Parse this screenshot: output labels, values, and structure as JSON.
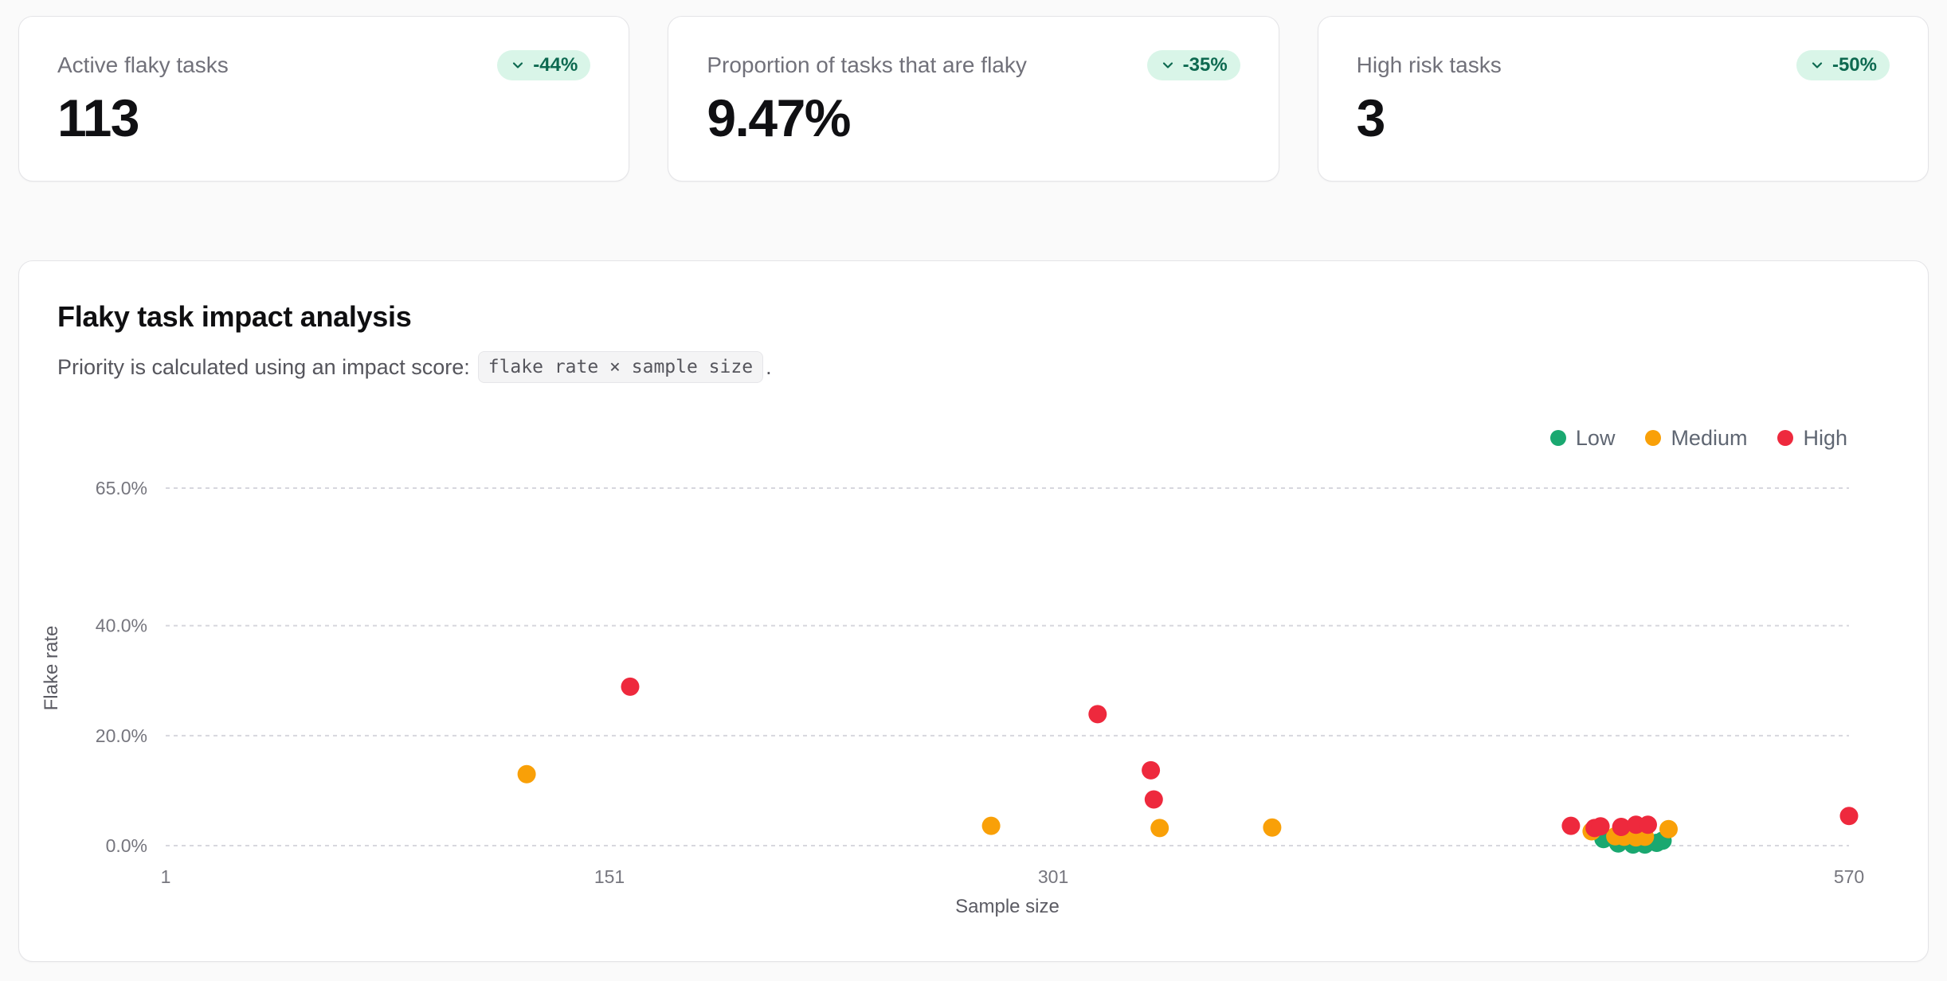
{
  "stats": [
    {
      "label": "Active flaky tasks",
      "value": "113",
      "delta": "-44%"
    },
    {
      "label": "Proportion of tasks that are flaky",
      "value": "9.47%",
      "delta": "-35%"
    },
    {
      "label": "High risk tasks",
      "value": "3",
      "delta": "-50%"
    }
  ],
  "badge_colors": {
    "background": "#d9f5e8",
    "text": "#0d6950"
  },
  "chart": {
    "title": "Flaky task impact analysis",
    "subtitle_prefix": "Priority is calculated using an impact score:",
    "subtitle_code": "flake rate × sample size",
    "subtitle_suffix": "."
  },
  "chart_data": {
    "type": "scatter",
    "title": "Flaky task impact analysis",
    "xlabel": "Sample size",
    "ylabel": "Flake rate",
    "x_range": [
      1,
      570
    ],
    "y_range": [
      0,
      65
    ],
    "x_ticks": [
      1,
      151,
      301,
      570
    ],
    "y_ticks": [
      {
        "value": 0,
        "label": "0.0%"
      },
      {
        "value": 20,
        "label": "20.0%"
      },
      {
        "value": 40,
        "label": "40.0%"
      },
      {
        "value": 65,
        "label": "65.0%"
      }
    ],
    "grid": "horizontal-dashed",
    "gridline_color": "#d7d7de",
    "legend_position": "top-right",
    "series": [
      {
        "name": "Low",
        "color": "#1aa870",
        "points": [
          [
            487,
            1.2
          ],
          [
            492,
            0.4
          ],
          [
            497,
            0.2
          ],
          [
            501,
            0.2
          ],
          [
            505,
            0.5
          ],
          [
            507,
            0.9
          ]
        ]
      },
      {
        "name": "Medium",
        "color": "#f9a008",
        "points": [
          [
            123,
            13.0
          ],
          [
            280,
            3.6
          ],
          [
            337,
            3.2
          ],
          [
            375,
            3.3
          ],
          [
            483,
            2.6
          ],
          [
            491,
            1.7
          ],
          [
            494,
            1.6
          ],
          [
            498,
            1.5
          ],
          [
            501,
            1.6
          ],
          [
            509,
            3.0
          ]
        ]
      },
      {
        "name": "High",
        "color": "#ee293d",
        "points": [
          [
            158,
            28.9
          ],
          [
            316,
            23.9
          ],
          [
            334,
            13.7
          ],
          [
            335,
            8.4
          ],
          [
            476,
            3.6
          ],
          [
            484,
            3.2
          ],
          [
            486,
            3.5
          ],
          [
            493,
            3.4
          ],
          [
            498,
            3.8
          ],
          [
            502,
            3.8
          ],
          [
            570,
            5.4
          ]
        ]
      }
    ]
  }
}
